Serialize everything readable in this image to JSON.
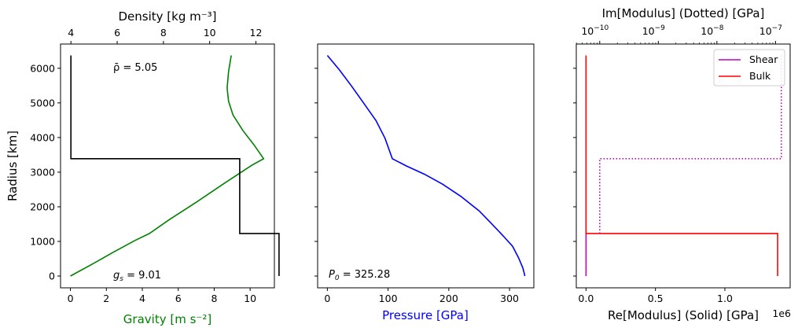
{
  "chart_data": [
    {
      "type": "line",
      "xlabel": "Gravity [m s⁻²]",
      "xlabel_color": "#008000",
      "x2label": "Density [kg m⁻³]",
      "ylabel": "Radius [km]",
      "xlim": [
        -0.55,
        11.35
      ],
      "x2lim": [
        3.55,
        12.8
      ],
      "ylim": [
        -340,
        6700
      ],
      "xticks": [
        "0",
        "2",
        "4",
        "6",
        "8",
        "10"
      ],
      "x2ticks": [
        "4",
        "6",
        "8",
        "10",
        "12"
      ],
      "yticks": [
        "0",
        "1000",
        "2000",
        "3000",
        "4000",
        "5000",
        "6000"
      ],
      "annotations": {
        "density_mean": "ρ̄ = 5.05",
        "gravity_surface_prefix": "g",
        "gravity_surface_sub": "s",
        "gravity_surface_value": " = 9.01"
      },
      "series": [
        {
          "color": "#008000",
          "axis": "bottom",
          "x": [
            0,
            1.2,
            2.4,
            3.6,
            4.4,
            5.5,
            7.0,
            8.6,
            10.1,
            10.75,
            10.2,
            9.6,
            9.05,
            8.8,
            8.72,
            8.8,
            8.95
          ],
          "y": [
            0,
            340,
            690,
            1030,
            1230,
            1630,
            2130,
            2690,
            3200,
            3390,
            3800,
            4200,
            4650,
            5050,
            5430,
            5900,
            6371
          ]
        },
        {
          "color": "#000000",
          "axis": "top",
          "x": [
            4.0,
            4.0,
            11.3,
            11.3,
            13.0,
            13.0
          ],
          "y": [
            6371,
            3390,
            3390,
            1230,
            1230,
            0
          ]
        }
      ]
    },
    {
      "type": "line",
      "xlabel": "Pressure [GPa]",
      "xlabel_color": "#0000ff",
      "xlim": [
        -16,
        340
      ],
      "ylim": [
        -340,
        6700
      ],
      "xticks": [
        "0",
        "100",
        "200",
        "300"
      ],
      "annotations": {
        "central_pressure_prefix": "P",
        "central_pressure_sub": "0",
        "central_pressure_value": " = 325.28"
      },
      "series": [
        {
          "color": "#0000ff",
          "x": [
            0,
            20,
            40,
            60,
            80,
            95,
            107,
            130,
            160,
            190,
            220,
            250,
            270,
            290,
            305,
            315,
            322,
            325.28
          ],
          "y": [
            6371,
            5950,
            5480,
            4990,
            4490,
            3980,
            3390,
            3180,
            2940,
            2650,
            2300,
            1880,
            1520,
            1150,
            860,
            520,
            230,
            0
          ]
        }
      ]
    },
    {
      "type": "line",
      "xlabel": "Re[Modulus] (Solid) [GPa]",
      "x_offset_label": "1e6",
      "x2label": "Im[Modulus] (Dotted) [GPa]",
      "xlim": [
        -0.07,
        1.47
      ],
      "x2lim_log10": [
        -10.4,
        -6.75
      ],
      "ylim": [
        -340,
        6700
      ],
      "xticks": [
        "0.0",
        "0.5",
        "1.0"
      ],
      "x2ticks": [
        {
          "base": "10",
          "exp": "−10"
        },
        {
          "base": "10",
          "exp": "−9"
        },
        {
          "base": "10",
          "exp": "−8"
        },
        {
          "base": "10",
          "exp": "−7"
        }
      ],
      "legend": {
        "position": "top-right",
        "entries": [
          "Shear",
          "Bulk"
        ]
      },
      "series": [
        {
          "name": "Shear",
          "color": "#bf00bf",
          "style": "solid",
          "x": [
            0,
            0
          ],
          "y": [
            0,
            1230
          ]
        },
        {
          "name": "Bulk",
          "color": "#ff0000",
          "style": "solid",
          "x": [
            0,
            0,
            1.38,
            1.38
          ],
          "y": [
            6371,
            1230,
            1230,
            0
          ]
        },
        {
          "color": "#bf00bf",
          "style": "dotted",
          "axis": "top",
          "x_log10": [
            -6.9,
            -6.9,
            -10.0,
            -10.0
          ],
          "y": [
            6371,
            3390,
            3390,
            1230
          ]
        }
      ]
    }
  ]
}
